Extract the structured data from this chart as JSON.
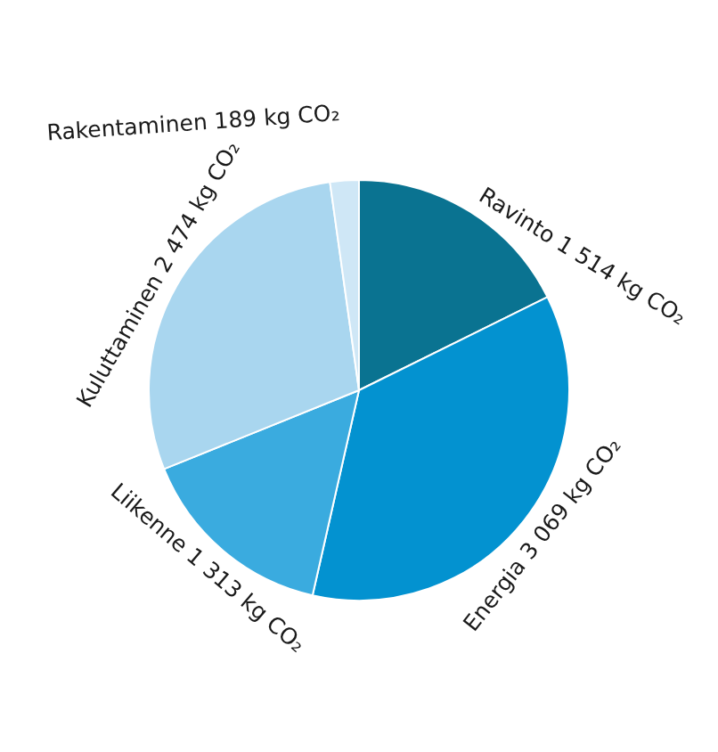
{
  "chart_data": {
    "type": "pie",
    "categories": [
      "Ravinto",
      "Energia",
      "Liikenne",
      "Kuluttaminen",
      "Rakentaminen"
    ],
    "values": [
      1514,
      3069,
      1313,
      2474,
      189
    ],
    "value_labels": [
      "1 514 kg CO₂",
      "3 069 kg CO₂",
      "1 313 kg CO₂",
      "2 474 kg CO₂",
      "189 kg CO₂"
    ],
    "colors": [
      "#0a7391",
      "#0392d0",
      "#3aabdf",
      "#a9d6ef",
      "#cfe7f6"
    ],
    "legend": false
  }
}
